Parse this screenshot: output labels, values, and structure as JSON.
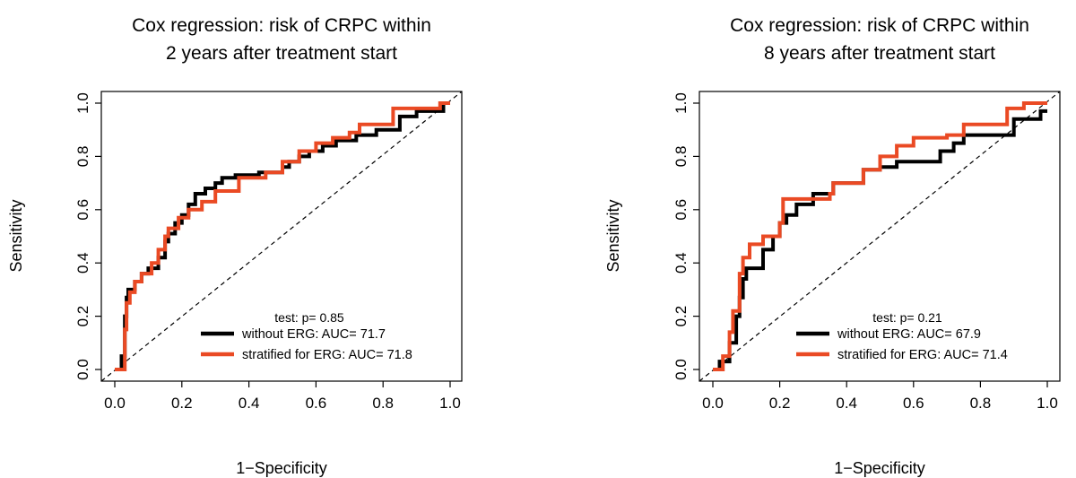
{
  "chart_data": [
    {
      "type": "line",
      "title": [
        "Cox regression: risk of CRPC within",
        "2 years after treatment start"
      ],
      "xlabel": "1−Specificity",
      "ylabel": "Sensitivity",
      "xlim": [
        0,
        1
      ],
      "ylim": [
        0,
        1
      ],
      "xticks": [
        "0.0",
        "0.2",
        "0.4",
        "0.6",
        "0.8",
        "1.0"
      ],
      "yticks": [
        "0.0",
        "0.2",
        "0.4",
        "0.6",
        "0.8",
        "1.0"
      ],
      "grid": false,
      "diagonal": true,
      "test_text": "test: p= 0.85",
      "series": [
        {
          "name": "without ERG: AUC= 71.7",
          "color": "#000000",
          "x": [
            0,
            0.02,
            0.02,
            0.03,
            0.03,
            0.035,
            0.035,
            0.04,
            0.04,
            0.06,
            0.06,
            0.08,
            0.08,
            0.1,
            0.1,
            0.13,
            0.13,
            0.15,
            0.15,
            0.16,
            0.16,
            0.18,
            0.18,
            0.2,
            0.2,
            0.22,
            0.22,
            0.24,
            0.24,
            0.27,
            0.27,
            0.3,
            0.3,
            0.32,
            0.32,
            0.36,
            0.36,
            0.43,
            0.43,
            0.5,
            0.5,
            0.52,
            0.52,
            0.55,
            0.55,
            0.58,
            0.58,
            0.62,
            0.62,
            0.66,
            0.66,
            0.72,
            0.72,
            0.78,
            0.78,
            0.85,
            0.85,
            0.9,
            0.9,
            0.98,
            0.98,
            1.0
          ],
          "y": [
            0,
            0,
            0.05,
            0.05,
            0.2,
            0.2,
            0.27,
            0.27,
            0.3,
            0.3,
            0.33,
            0.33,
            0.36,
            0.36,
            0.38,
            0.38,
            0.42,
            0.42,
            0.48,
            0.48,
            0.51,
            0.51,
            0.55,
            0.55,
            0.58,
            0.58,
            0.62,
            0.62,
            0.66,
            0.66,
            0.68,
            0.68,
            0.7,
            0.7,
            0.72,
            0.72,
            0.73,
            0.73,
            0.74,
            0.74,
            0.76,
            0.76,
            0.78,
            0.78,
            0.8,
            0.8,
            0.82,
            0.82,
            0.84,
            0.84,
            0.86,
            0.86,
            0.88,
            0.88,
            0.9,
            0.9,
            0.95,
            0.95,
            0.97,
            0.97,
            1.0,
            1.0
          ]
        },
        {
          "name": "stratified for ERG: AUC= 71.8",
          "color": "#ea4a24",
          "x": [
            0,
            0.03,
            0.03,
            0.035,
            0.035,
            0.045,
            0.045,
            0.06,
            0.06,
            0.08,
            0.08,
            0.11,
            0.11,
            0.13,
            0.13,
            0.15,
            0.15,
            0.16,
            0.16,
            0.19,
            0.19,
            0.22,
            0.22,
            0.26,
            0.26,
            0.3,
            0.3,
            0.37,
            0.37,
            0.45,
            0.45,
            0.5,
            0.5,
            0.55,
            0.55,
            0.6,
            0.6,
            0.65,
            0.65,
            0.7,
            0.7,
            0.73,
            0.73,
            0.83,
            0.83,
            0.97,
            0.97,
            1.0
          ],
          "y": [
            0,
            0,
            0.15,
            0.15,
            0.25,
            0.25,
            0.29,
            0.29,
            0.33,
            0.33,
            0.36,
            0.36,
            0.4,
            0.4,
            0.45,
            0.45,
            0.5,
            0.5,
            0.53,
            0.53,
            0.57,
            0.57,
            0.6,
            0.6,
            0.63,
            0.63,
            0.67,
            0.67,
            0.72,
            0.72,
            0.74,
            0.74,
            0.78,
            0.78,
            0.82,
            0.82,
            0.85,
            0.85,
            0.87,
            0.87,
            0.89,
            0.89,
            0.92,
            0.92,
            0.98,
            0.98,
            1.0,
            1.0
          ]
        }
      ]
    },
    {
      "type": "line",
      "title": [
        "Cox regression: risk of CRPC within",
        "8 years after treatment start"
      ],
      "xlabel": "1−Specificity",
      "ylabel": "Sensitivity",
      "xlim": [
        0,
        1
      ],
      "ylim": [
        0,
        1
      ],
      "xticks": [
        "0.0",
        "0.2",
        "0.4",
        "0.6",
        "0.8",
        "1.0"
      ],
      "yticks": [
        "0.0",
        "0.2",
        "0.4",
        "0.6",
        "0.8",
        "1.0"
      ],
      "grid": false,
      "diagonal": true,
      "test_text": "test: p= 0.21",
      "series": [
        {
          "name": "without ERG: AUC= 67.9",
          "color": "#000000",
          "x": [
            0,
            0.02,
            0.02,
            0.05,
            0.05,
            0.07,
            0.07,
            0.08,
            0.08,
            0.09,
            0.09,
            0.1,
            0.1,
            0.15,
            0.15,
            0.18,
            0.18,
            0.2,
            0.2,
            0.22,
            0.22,
            0.25,
            0.25,
            0.3,
            0.3,
            0.36,
            0.36,
            0.45,
            0.45,
            0.5,
            0.5,
            0.55,
            0.55,
            0.68,
            0.68,
            0.72,
            0.72,
            0.75,
            0.75,
            0.9,
            0.9,
            0.98,
            0.98,
            1.0
          ],
          "y": [
            0,
            0,
            0.03,
            0.03,
            0.1,
            0.1,
            0.2,
            0.2,
            0.27,
            0.27,
            0.34,
            0.34,
            0.38,
            0.38,
            0.45,
            0.45,
            0.5,
            0.5,
            0.55,
            0.55,
            0.58,
            0.58,
            0.62,
            0.62,
            0.66,
            0.66,
            0.7,
            0.7,
            0.75,
            0.75,
            0.76,
            0.76,
            0.78,
            0.78,
            0.82,
            0.82,
            0.85,
            0.85,
            0.88,
            0.88,
            0.94,
            0.94,
            0.97,
            0.97
          ]
        },
        {
          "name": "stratified for ERG: AUC= 71.4",
          "color": "#ea4a24",
          "x": [
            0,
            0.03,
            0.03,
            0.05,
            0.05,
            0.06,
            0.06,
            0.08,
            0.08,
            0.09,
            0.09,
            0.11,
            0.11,
            0.15,
            0.15,
            0.2,
            0.2,
            0.21,
            0.21,
            0.35,
            0.35,
            0.36,
            0.36,
            0.45,
            0.45,
            0.5,
            0.5,
            0.55,
            0.55,
            0.6,
            0.6,
            0.7,
            0.7,
            0.75,
            0.75,
            0.88,
            0.88,
            0.93,
            0.93,
            1.0
          ],
          "y": [
            0,
            0,
            0.05,
            0.05,
            0.14,
            0.14,
            0.22,
            0.22,
            0.36,
            0.36,
            0.42,
            0.42,
            0.47,
            0.47,
            0.5,
            0.5,
            0.55,
            0.55,
            0.64,
            0.64,
            0.66,
            0.66,
            0.7,
            0.7,
            0.75,
            0.75,
            0.8,
            0.8,
            0.84,
            0.84,
            0.87,
            0.87,
            0.88,
            0.88,
            0.92,
            0.92,
            0.98,
            0.98,
            1.0,
            1.0
          ]
        }
      ]
    }
  ]
}
